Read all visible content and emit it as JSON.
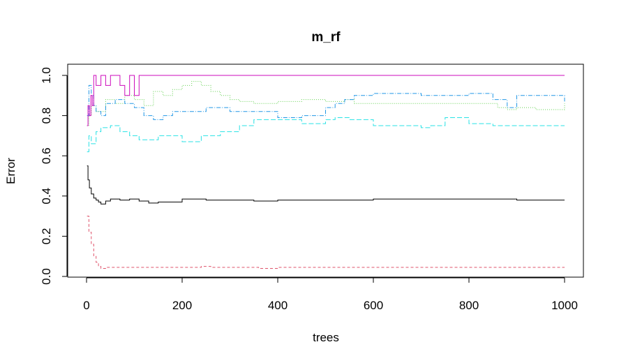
{
  "chart_data": {
    "type": "line",
    "title": "m_rf",
    "xlabel": "trees",
    "ylabel": "Error",
    "xlim": [
      0,
      1000
    ],
    "ylim": [
      0,
      1
    ],
    "xticks": [
      0,
      200,
      400,
      600,
      800,
      1000
    ],
    "yticks": [
      0.0,
      0.2,
      0.4,
      0.6,
      0.8,
      1.0
    ],
    "xtick_labels": [
      "0",
      "200",
      "400",
      "600",
      "800",
      "1000"
    ],
    "ytick_labels": [
      "0.0",
      "0.2",
      "0.4",
      "0.6",
      "0.8",
      "1.0"
    ],
    "grid": false,
    "legend": "none",
    "series": [
      {
        "color": "#000000",
        "dash": "none",
        "x": [
          1,
          3,
          6,
          10,
          15,
          20,
          25,
          30,
          40,
          50,
          70,
          90,
          110,
          130,
          150,
          200,
          250,
          300,
          350,
          400,
          450,
          500,
          600,
          700,
          800,
          900,
          1000
        ],
        "y": [
          0.55,
          0.48,
          0.44,
          0.41,
          0.39,
          0.38,
          0.37,
          0.36,
          0.375,
          0.385,
          0.38,
          0.385,
          0.375,
          0.365,
          0.37,
          0.385,
          0.38,
          0.38,
          0.375,
          0.38,
          0.38,
          0.38,
          0.385,
          0.385,
          0.385,
          0.38,
          0.38
        ]
      },
      {
        "color": "#DF536B",
        "dash": "4,3",
        "x": [
          1,
          5,
          10,
          15,
          20,
          25,
          30,
          35,
          40,
          60,
          80,
          100,
          200,
          240,
          260,
          360,
          400,
          600,
          800,
          1000
        ],
        "y": [
          0.3,
          0.22,
          0.16,
          0.1,
          0.07,
          0.05,
          0.04,
          0.04,
          0.045,
          0.045,
          0.045,
          0.045,
          0.045,
          0.05,
          0.045,
          0.04,
          0.045,
          0.045,
          0.045,
          0.045
        ]
      },
      {
        "color": "#61D04F",
        "dash": "1,2",
        "x": [
          1,
          5,
          10,
          20,
          40,
          60,
          80,
          100,
          120,
          140,
          160,
          180,
          200,
          220,
          240,
          260,
          280,
          300,
          320,
          350,
          400,
          450,
          500,
          540,
          560,
          600,
          700,
          800,
          850,
          860,
          880,
          900,
          940,
          1000
        ],
        "y": [
          0.75,
          0.8,
          0.85,
          0.82,
          0.88,
          0.86,
          0.9,
          0.88,
          0.85,
          0.92,
          0.9,
          0.93,
          0.95,
          0.97,
          0.95,
          0.92,
          0.9,
          0.88,
          0.87,
          0.86,
          0.87,
          0.88,
          0.87,
          0.88,
          0.86,
          0.86,
          0.86,
          0.86,
          0.86,
          0.84,
          0.83,
          0.84,
          0.83,
          0.86
        ]
      },
      {
        "color": "#2297E6",
        "dash": "6,2,1,2",
        "x": [
          1,
          5,
          10,
          15,
          20,
          30,
          40,
          60,
          80,
          100,
          120,
          140,
          160,
          180,
          200,
          250,
          300,
          350,
          400,
          450,
          500,
          520,
          540,
          560,
          600,
          700,
          800,
          850,
          880,
          900,
          1000
        ],
        "y": [
          0.8,
          0.95,
          0.9,
          0.85,
          0.82,
          0.8,
          0.86,
          0.88,
          0.86,
          0.84,
          0.8,
          0.78,
          0.8,
          0.82,
          0.82,
          0.84,
          0.82,
          0.82,
          0.79,
          0.8,
          0.84,
          0.86,
          0.88,
          0.9,
          0.91,
          0.9,
          0.91,
          0.88,
          0.84,
          0.9,
          0.87
        ]
      },
      {
        "color": "#28E2E5",
        "dash": "7,3",
        "x": [
          1,
          5,
          10,
          20,
          30,
          50,
          70,
          90,
          110,
          130,
          150,
          170,
          200,
          240,
          280,
          320,
          350,
          400,
          450,
          500,
          520,
          550,
          600,
          650,
          700,
          720,
          750,
          800,
          850,
          900,
          1000
        ],
        "y": [
          0.62,
          0.7,
          0.66,
          0.72,
          0.74,
          0.75,
          0.72,
          0.7,
          0.68,
          0.68,
          0.7,
          0.7,
          0.67,
          0.7,
          0.72,
          0.75,
          0.78,
          0.78,
          0.76,
          0.78,
          0.79,
          0.78,
          0.75,
          0.75,
          0.74,
          0.75,
          0.79,
          0.76,
          0.75,
          0.75,
          0.75
        ]
      },
      {
        "color": "#CD0BBC",
        "dash": "none",
        "x": [
          1,
          3,
          6,
          9,
          12,
          15,
          20,
          30,
          40,
          50,
          60,
          70,
          80,
          90,
          100,
          110,
          120,
          200,
          400,
          600,
          800,
          1000
        ],
        "y": [
          0.75,
          0.85,
          0.8,
          0.9,
          0.85,
          1.0,
          0.95,
          1.0,
          0.95,
          1.0,
          1.0,
          0.95,
          0.9,
          1.0,
          0.9,
          1.0,
          1.0,
          1.0,
          1.0,
          1.0,
          1.0,
          1.0
        ]
      }
    ]
  }
}
